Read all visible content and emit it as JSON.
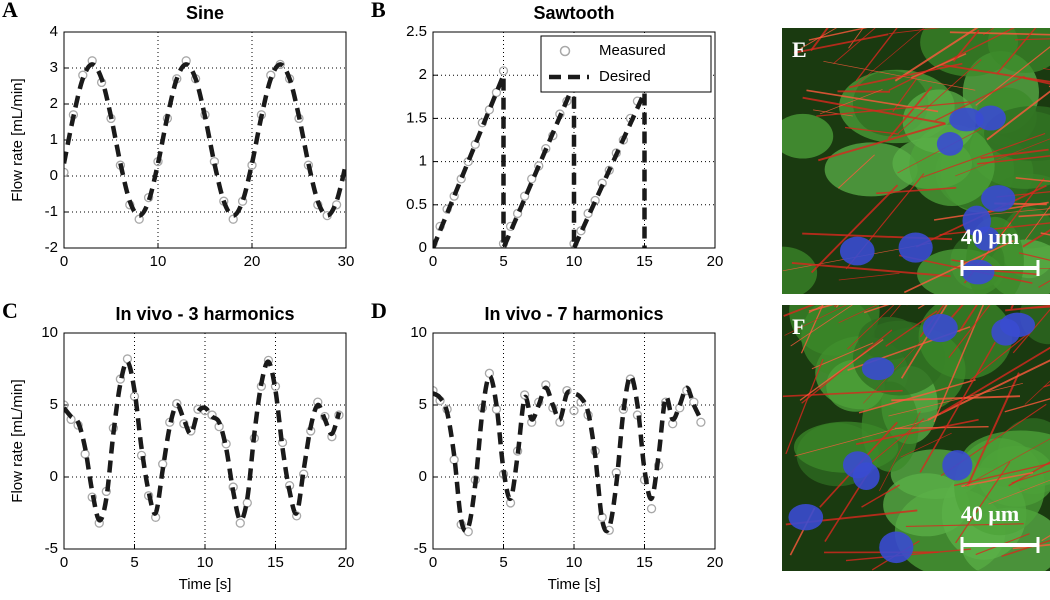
{
  "chart_data": [
    {
      "type": "line",
      "panel_label": "A",
      "title": "Sine",
      "y_label": "Flow rate [mL/min]",
      "xlim": [
        0,
        30
      ],
      "xticks": [
        0,
        10,
        20,
        30
      ],
      "ylim": [
        -2,
        4
      ],
      "yticks": [
        -2,
        -1,
        0,
        1,
        2,
        3,
        4
      ],
      "grid": true,
      "series": [
        {
          "name": "Measured",
          "style": "markers",
          "color": "#a8a8a8",
          "x": [
            0,
            1,
            2,
            3,
            4,
            5,
            6,
            7,
            8,
            9,
            10,
            11,
            12,
            13,
            14,
            15,
            16,
            17,
            18,
            19,
            20,
            21,
            22,
            23,
            24,
            25,
            26,
            27,
            28,
            29,
            30
          ],
          "values": [
            0.1,
            1.7,
            2.8,
            3.2,
            2.6,
            1.6,
            0.3,
            -0.8,
            -1.2,
            -0.6,
            0.4,
            1.6,
            2.7,
            3.2,
            2.7,
            1.7,
            0.4,
            -0.7,
            -1.2,
            -0.7,
            0.3,
            1.7,
            2.8,
            3.1,
            2.7,
            1.6,
            0.3,
            -0.8,
            -1.1,
            -0.8,
            0.0
          ]
        },
        {
          "name": "Desired",
          "style": "dashed",
          "color": "#1a1a1a",
          "x": [
            0,
            1,
            2,
            3,
            4,
            5,
            6,
            7,
            8,
            9,
            10,
            11,
            12,
            13,
            14,
            15,
            16,
            17,
            18,
            19,
            20,
            21,
            22,
            23,
            24,
            25,
            26,
            27,
            28,
            29,
            30
          ],
          "values": [
            0.35,
            1.65,
            2.7,
            3.1,
            2.7,
            1.65,
            0.35,
            -0.7,
            -1.1,
            -0.7,
            0.35,
            1.65,
            2.7,
            3.1,
            2.7,
            1.65,
            0.35,
            -0.7,
            -1.1,
            -0.7,
            0.35,
            1.65,
            2.7,
            3.1,
            2.7,
            1.65,
            0.35,
            -0.7,
            -1.1,
            -0.7,
            0.35
          ]
        }
      ]
    },
    {
      "type": "line",
      "panel_label": "B",
      "title": "Sawtooth",
      "xlim": [
        0,
        20
      ],
      "xticks": [
        0,
        5,
        10,
        15,
        20
      ],
      "ylim": [
        0,
        2.5
      ],
      "yticks": [
        0,
        0.5,
        1,
        1.5,
        2,
        2.5
      ],
      "grid": true,
      "legend": "upper right",
      "series": [
        {
          "name": "Measured",
          "style": "markers",
          "color": "#a8a8a8",
          "x": [
            0,
            0.5,
            1,
            1.5,
            2,
            2.5,
            3,
            3.5,
            4,
            4.5,
            5,
            5,
            5.5,
            6,
            6.5,
            7,
            7.5,
            8,
            8.5,
            9,
            9.5,
            10,
            10,
            10.5,
            11,
            11.5,
            12,
            12.5,
            13,
            13.5,
            14,
            14.5
          ],
          "values": [
            0.05,
            0.25,
            0.45,
            0.6,
            0.8,
            1.0,
            1.2,
            1.45,
            1.6,
            1.8,
            2.05,
            0.05,
            0.25,
            0.4,
            0.6,
            0.8,
            0.95,
            1.15,
            1.3,
            1.55,
            1.7,
            1.85,
            0.05,
            0.2,
            0.4,
            0.55,
            0.75,
            0.9,
            1.1,
            1.25,
            1.5,
            1.7
          ]
        },
        {
          "name": "Desired",
          "style": "dashed",
          "color": "#1a1a1a",
          "x": [
            0,
            5,
            5,
            10,
            10,
            15,
            15
          ],
          "values": [
            0,
            2,
            0,
            1.9,
            0,
            1.8,
            0
          ]
        }
      ]
    },
    {
      "type": "line",
      "panel_label": "C",
      "title": "In vivo - 3 harmonics",
      "x_label": "Time [s]",
      "y_label": "Flow rate [mL/min]",
      "xlim": [
        0,
        20
      ],
      "xticks": [
        0,
        5,
        10,
        15,
        20
      ],
      "ylim": [
        -5,
        10
      ],
      "yticks": [
        -5,
        0,
        5,
        10
      ],
      "grid": true,
      "series": [
        {
          "name": "Measured",
          "style": "markers",
          "color": "#a8a8a8",
          "x": [
            0,
            0.5,
            1,
            1.5,
            2,
            2.5,
            3,
            3.5,
            4,
            4.5,
            5,
            5.5,
            6,
            6.5,
            7,
            7.5,
            8,
            8.5,
            9,
            9.5,
            10,
            10.5,
            11,
            11.5,
            12,
            12.5,
            13,
            13.5,
            14,
            14.5,
            15,
            15.5,
            16,
            16.5,
            17,
            17.5,
            18,
            18.5,
            19,
            19.5
          ],
          "values": [
            5.0,
            4.0,
            3.6,
            1.6,
            -1.4,
            -3.2,
            -1.0,
            3.4,
            6.8,
            8.2,
            5.6,
            1.5,
            -1.3,
            -2.8,
            0.9,
            3.8,
            5.1,
            3.7,
            3.2,
            4.7,
            4.6,
            4.3,
            3.5,
            2.3,
            -0.7,
            -3.2,
            -1.8,
            2.7,
            6.3,
            8.1,
            6.3,
            2.4,
            -0.6,
            -2.7,
            0.2,
            3.2,
            5.2,
            4.2,
            2.8,
            4.3
          ]
        },
        {
          "name": "Desired",
          "style": "dashed",
          "color": "#1a1a1a",
          "x": [
            0,
            0.5,
            1,
            1.5,
            2,
            2.5,
            3,
            3.5,
            4,
            4.5,
            5,
            5.5,
            6,
            6.5,
            7,
            7.5,
            8,
            8.5,
            9,
            9.5,
            10,
            10.5,
            11,
            11.5,
            12,
            12.5,
            13,
            13.5,
            14,
            14.5,
            15,
            15.5,
            16,
            16.5,
            17,
            17.5,
            18,
            18.5,
            19,
            19.5
          ],
          "values": [
            4.8,
            4.2,
            3.8,
            2.0,
            -1.0,
            -3.0,
            -1.5,
            3.0,
            6.5,
            8.0,
            6.0,
            2.0,
            -1.0,
            -2.5,
            0.5,
            3.5,
            5.0,
            4.0,
            3.0,
            4.5,
            4.8,
            4.2,
            3.8,
            2.0,
            -1.0,
            -3.0,
            -1.5,
            3.0,
            6.5,
            8.0,
            6.0,
            2.0,
            -1.0,
            -2.5,
            0.5,
            3.5,
            5.0,
            4.0,
            3.0,
            4.5
          ]
        }
      ]
    },
    {
      "type": "line",
      "panel_label": "D",
      "title": "In vivo - 7 harmonics",
      "x_label": "Time [s]",
      "xlim": [
        0,
        20
      ],
      "xticks": [
        0,
        5,
        10,
        15,
        20
      ],
      "ylim": [
        -5,
        10
      ],
      "yticks": [
        -5,
        0,
        5,
        10
      ],
      "grid": true,
      "series": [
        {
          "name": "Measured",
          "style": "markers",
          "color": "#a8a8a8",
          "x": [
            0,
            0.5,
            1,
            1.5,
            2,
            2.5,
            3,
            3.5,
            4,
            4.5,
            5,
            5.5,
            6,
            6.5,
            7,
            7.5,
            8,
            8.5,
            9,
            9.5,
            10,
            10.5,
            11,
            11.5,
            12,
            12.5,
            13,
            13.5,
            14,
            14.5,
            15,
            15.5,
            16,
            16.5,
            17,
            17.5,
            18,
            18.5,
            19
          ],
          "values": [
            6.0,
            5.3,
            4.7,
            1.2,
            -3.3,
            -3.8,
            -0.2,
            4.8,
            7.2,
            4.7,
            0.2,
            -1.8,
            1.8,
            5.7,
            3.8,
            5.2,
            6.4,
            4.8,
            3.8,
            6.0,
            4.6,
            5.2,
            4.3,
            1.8,
            -2.8,
            -3.7,
            0.3,
            4.7,
            6.8,
            4.3,
            -0.2,
            -2.2,
            0.8,
            5.2,
            3.7,
            4.8,
            6.0,
            5.2,
            3.8
          ]
        },
        {
          "name": "Desired",
          "style": "dashed",
          "color": "#1a1a1a",
          "x": [
            0,
            0.5,
            1,
            1.5,
            2,
            2.5,
            3,
            3.5,
            4,
            4.5,
            5,
            5.5,
            6,
            6.5,
            7,
            7.5,
            8,
            8.5,
            9,
            9.5,
            10,
            10.5,
            11,
            11.5,
            12,
            12.5,
            13,
            13.5,
            14,
            14.5,
            15,
            15.5,
            16,
            16.5,
            17,
            17.5,
            18,
            18.5,
            19
          ],
          "values": [
            5.8,
            5.5,
            4.5,
            1.5,
            -3.0,
            -3.5,
            -0.5,
            4.5,
            7.0,
            5.0,
            0.5,
            -1.5,
            1.5,
            5.5,
            4.0,
            5.0,
            6.2,
            5.0,
            4.0,
            5.8,
            5.8,
            5.5,
            4.5,
            1.5,
            -3.0,
            -3.5,
            -0.5,
            4.5,
            7.0,
            5.0,
            0.5,
            -1.5,
            1.5,
            5.5,
            4.0,
            5.0,
            6.2,
            5.0,
            4.0
          ]
        }
      ]
    }
  ],
  "images": [
    {
      "label": "E",
      "scale_bar": "40 μm"
    },
    {
      "label": "F",
      "scale_bar": "40 μm"
    }
  ]
}
